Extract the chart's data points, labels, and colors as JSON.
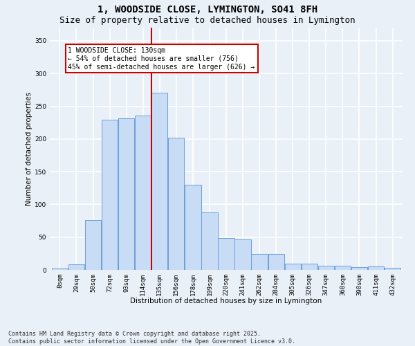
{
  "title_line1": "1, WOODSIDE CLOSE, LYMINGTON, SO41 8FH",
  "title_line2": "Size of property relative to detached houses in Lymington",
  "xlabel": "Distribution of detached houses by size in Lymington",
  "ylabel": "Number of detached properties",
  "bar_color": "#c9dcf5",
  "bar_edge_color": "#6a9fd8",
  "bg_color": "#eaf0f8",
  "grid_color": "#ffffff",
  "vline_color": "#cc0000",
  "annotation_text": "1 WOODSIDE CLOSE: 130sqm\n← 54% of detached houses are smaller (756)\n45% of semi-detached houses are larger (626) →",
  "annotation_box_color": "#ffffff",
  "annotation_box_edge_color": "#cc0000",
  "categories": [
    "8sqm",
    "29sqm",
    "50sqm",
    "72sqm",
    "93sqm",
    "114sqm",
    "135sqm",
    "156sqm",
    "178sqm",
    "199sqm",
    "220sqm",
    "241sqm",
    "262sqm",
    "284sqm",
    "305sqm",
    "326sqm",
    "347sqm",
    "368sqm",
    "390sqm",
    "411sqm",
    "432sqm"
  ],
  "values": [
    2,
    8,
    76,
    229,
    232,
    236,
    271,
    202,
    130,
    88,
    49,
    47,
    24,
    24,
    10,
    10,
    6,
    6,
    4,
    5,
    3
  ],
  "ylim": [
    0,
    370
  ],
  "yticks": [
    0,
    50,
    100,
    150,
    200,
    250,
    300,
    350
  ],
  "footnote": "Contains HM Land Registry data © Crown copyright and database right 2025.\nContains public sector information licensed under the Open Government Licence v3.0.",
  "title_fontsize": 10,
  "subtitle_fontsize": 9,
  "axis_label_fontsize": 7.5,
  "tick_fontsize": 6.5,
  "annotation_fontsize": 7,
  "footnote_fontsize": 6
}
